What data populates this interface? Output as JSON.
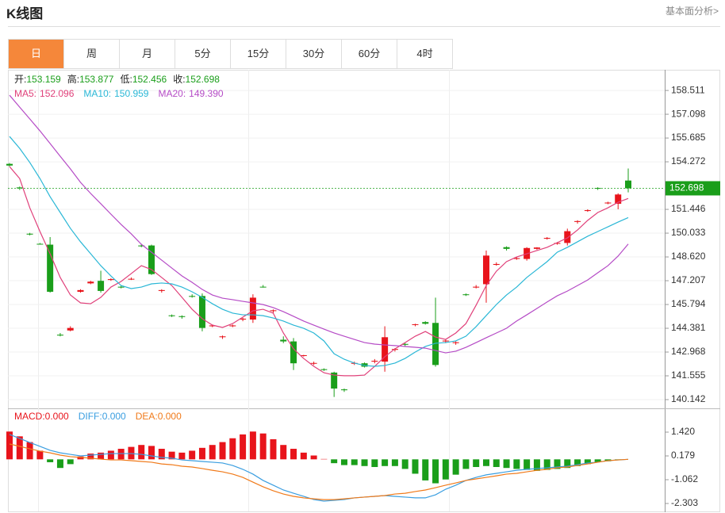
{
  "header": {
    "title": "K线图",
    "link": "基本面分析>"
  },
  "tabs": [
    "日",
    "周",
    "月",
    "5分",
    "15分",
    "30分",
    "60分",
    "4时"
  ],
  "chart_data": [
    {
      "type": "candlestick",
      "ohlc_labels": [
        "开:",
        "高:",
        "低:",
        "收:"
      ],
      "up_color": "#e8141b",
      "down_color": "#1a9e1a",
      "open": [
        154.15,
        152.75,
        150.0,
        149.4,
        149.35,
        144.0,
        144.25,
        146.55,
        147.05,
        147.2,
        147.25,
        146.85,
        147.3,
        149.3,
        149.3,
        146.6,
        145.15,
        145.1,
        146.3,
        146.3,
        144.5,
        143.85,
        144.5,
        144.9,
        144.9,
        146.85,
        145.4,
        143.7,
        143.6,
        142.75,
        142.3,
        141.95,
        141.75,
        140.75,
        142.3,
        142.3,
        142.4,
        142.4,
        143.1,
        143.45,
        144.6,
        144.75,
        144.7,
        143.6,
        143.5,
        146.4,
        146.8,
        147.0,
        148.15,
        149.2,
        148.5,
        148.5,
        149.1,
        149.7,
        149.4,
        149.45,
        150.7,
        151.35,
        152.72,
        151.8,
        151.78,
        153.159
      ],
      "high": [
        154.2,
        152.8,
        150.05,
        149.45,
        149.8,
        144.1,
        144.5,
        146.7,
        147.2,
        147.8,
        147.35,
        146.9,
        147.4,
        149.4,
        149.35,
        146.7,
        145.2,
        145.15,
        146.4,
        146.45,
        144.6,
        143.95,
        144.6,
        145.0,
        146.4,
        146.95,
        145.5,
        143.9,
        143.8,
        142.8,
        142.4,
        142.0,
        141.8,
        140.8,
        142.4,
        142.35,
        142.55,
        144.5,
        143.2,
        143.5,
        144.65,
        144.8,
        146.2,
        143.7,
        143.6,
        146.45,
        146.95,
        149.0,
        148.3,
        149.25,
        148.6,
        149.2,
        149.2,
        149.8,
        149.5,
        150.3,
        150.8,
        151.45,
        152.76,
        151.9,
        152.4,
        153.877
      ],
      "low": [
        154.0,
        152.6,
        149.9,
        149.35,
        146.5,
        143.9,
        144.2,
        146.5,
        147.0,
        146.5,
        147.2,
        146.75,
        147.25,
        149.2,
        147.55,
        146.5,
        145.05,
        144.95,
        146.2,
        144.2,
        144.45,
        143.75,
        144.45,
        144.8,
        144.7,
        146.8,
        145.3,
        143.5,
        141.9,
        142.7,
        142.2,
        141.85,
        140.3,
        140.6,
        142.2,
        142.05,
        142.3,
        141.8,
        143.0,
        143.3,
        144.5,
        144.6,
        142.1,
        143.5,
        143.4,
        146.3,
        146.75,
        145.9,
        148.1,
        149.0,
        148.45,
        148.4,
        149.05,
        149.65,
        149.35,
        149.3,
        150.6,
        151.3,
        152.6,
        151.75,
        151.45,
        152.456
      ],
      "close": [
        154.05,
        152.7,
        149.95,
        149.38,
        146.55,
        143.95,
        144.4,
        146.65,
        147.15,
        146.6,
        147.3,
        146.8,
        147.32,
        149.25,
        147.6,
        146.65,
        145.1,
        145.05,
        146.25,
        144.4,
        144.55,
        143.9,
        144.55,
        144.95,
        146.2,
        146.82,
        145.45,
        143.6,
        142.3,
        142.78,
        142.32,
        141.9,
        140.8,
        140.7,
        142.32,
        142.1,
        142.45,
        143.85,
        143.15,
        143.4,
        144.62,
        144.65,
        142.2,
        143.65,
        143.55,
        146.35,
        146.85,
        148.7,
        148.2,
        149.1,
        148.55,
        149.15,
        149.18,
        149.75,
        149.45,
        150.15,
        150.75,
        151.4,
        152.7,
        151.85,
        152.33,
        152.698
      ],
      "series": [
        {
          "name": "MA5:",
          "color": "#e0407a",
          "values": [
            153.99,
            153.28,
            151.54,
            150.13,
            148.81,
            147.4,
            146.36,
            145.89,
            145.84,
            146.22,
            146.83,
            147.16,
            147.63,
            148.1,
            147.87,
            147.4,
            146.92,
            146.22,
            145.51,
            144.95,
            144.57,
            144.43,
            144.66,
            145.04,
            145.42,
            145.51,
            145.28,
            144.1,
            143.16,
            142.59,
            142.12,
            141.74,
            141.6,
            141.56,
            141.56,
            141.6,
            142.12,
            142.69,
            143.16,
            143.53,
            143.91,
            144.19,
            143.86,
            143.72,
            144.1,
            144.66,
            145.75,
            146.92,
            147.77,
            148.34,
            148.62,
            148.81,
            149.0,
            149.19,
            149.47,
            149.75,
            150.22,
            150.79,
            151.26,
            151.54,
            151.87,
            152.096
          ],
          "value_labels": [
            null,
            null,
            null,
            null,
            null,
            null,
            null,
            null,
            null,
            null,
            null,
            null,
            null,
            null,
            null,
            null,
            null,
            null,
            null,
            null,
            null,
            null,
            null,
            null,
            null,
            null,
            null,
            null,
            null,
            null,
            null,
            null,
            null,
            null,
            null,
            null,
            null,
            null,
            null,
            null,
            null,
            null,
            null,
            null,
            null,
            null,
            null,
            null,
            null,
            null,
            null,
            null,
            null,
            null,
            null,
            null,
            null,
            null,
            null,
            null,
            null,
            "152.096"
          ]
        },
        {
          "name": "MA10:",
          "color": "#2ab7d6",
          "values": [
            155.78,
            155.07,
            154.23,
            153.28,
            152.2,
            151.26,
            150.32,
            149.52,
            148.81,
            148.1,
            147.49,
            146.92,
            146.74,
            146.83,
            147.02,
            147.07,
            147.02,
            146.83,
            146.55,
            146.22,
            145.84,
            145.51,
            145.28,
            145.18,
            145.18,
            145.13,
            144.99,
            144.81,
            144.57,
            144.38,
            144.1,
            143.63,
            142.87,
            142.54,
            142.31,
            142.17,
            142.12,
            142.17,
            142.31,
            142.59,
            142.97,
            143.3,
            143.49,
            143.53,
            143.63,
            143.91,
            144.48,
            145.14,
            145.79,
            146.36,
            146.83,
            147.4,
            147.87,
            148.34,
            148.9,
            149.19,
            149.52,
            149.85,
            150.13,
            150.41,
            150.69,
            150.959
          ],
          "value_labels": [
            null,
            null,
            null,
            null,
            null,
            null,
            null,
            null,
            null,
            null,
            null,
            null,
            null,
            null,
            null,
            null,
            null,
            null,
            null,
            null,
            null,
            null,
            null,
            null,
            null,
            null,
            null,
            null,
            null,
            null,
            null,
            null,
            null,
            null,
            null,
            null,
            null,
            null,
            null,
            null,
            null,
            null,
            null,
            null,
            null,
            null,
            null,
            null,
            null,
            null,
            null,
            null,
            null,
            null,
            null,
            null,
            null,
            null,
            null,
            null,
            null,
            "150.959"
          ]
        },
        {
          "name": "MA20:",
          "color": "#b54bc6",
          "values": [
            158.23,
            157.52,
            156.82,
            156.11,
            155.36,
            154.6,
            153.85,
            153.05,
            152.39,
            151.78,
            151.16,
            150.55,
            149.99,
            149.37,
            148.9,
            148.43,
            147.96,
            147.49,
            147.11,
            146.69,
            146.36,
            146.17,
            146.08,
            145.98,
            145.89,
            145.79,
            145.61,
            145.37,
            145.09,
            144.81,
            144.57,
            144.33,
            144.1,
            143.91,
            143.72,
            143.53,
            143.44,
            143.39,
            143.35,
            143.3,
            143.25,
            143.2,
            143.06,
            142.92,
            143.02,
            143.25,
            143.53,
            143.82,
            144.1,
            144.38,
            144.81,
            145.18,
            145.56,
            145.94,
            146.31,
            146.59,
            146.92,
            147.25,
            147.68,
            148.1,
            148.67,
            149.39
          ],
          "value_labels": [
            null,
            null,
            null,
            null,
            null,
            null,
            null,
            null,
            null,
            null,
            null,
            null,
            null,
            null,
            null,
            null,
            null,
            null,
            null,
            null,
            null,
            null,
            null,
            null,
            null,
            null,
            null,
            null,
            null,
            null,
            null,
            null,
            null,
            null,
            null,
            null,
            null,
            null,
            null,
            null,
            null,
            null,
            null,
            null,
            null,
            null,
            null,
            null,
            null,
            null,
            null,
            null,
            null,
            null,
            null,
            null,
            null,
            null,
            null,
            null,
            null,
            "149.390"
          ]
        }
      ],
      "ylim": [
        139.624,
        159.74
      ],
      "yticks": [
        158.511,
        157.098,
        155.685,
        154.272,
        151.446,
        150.033,
        {
          "value": 148.62,
          "label": "148.620"
        },
        147.207,
        145.794,
        144.381,
        142.968,
        141.555,
        140.142
      ],
      "grid": true
    },
    {
      "type": "macd",
      "series": [
        {
          "name": "MACD:",
          "kind": "bar",
          "color": "#e8141b",
          "negative_color": "#1a9e1a",
          "values": [
            1.45,
            1.2,
            0.9,
            0.45,
            -0.15,
            -0.45,
            -0.25,
            0.15,
            0.3,
            0.35,
            0.45,
            0.55,
            0.65,
            0.75,
            0.7,
            0.55,
            0.4,
            0.35,
            0.45,
            0.6,
            0.75,
            0.9,
            1.1,
            1.3,
            1.45,
            1.35,
            1.05,
            0.75,
            0.55,
            0.35,
            0.2,
            0.02,
            -0.2,
            -0.3,
            -0.3,
            -0.35,
            -0.4,
            -0.35,
            -0.35,
            -0.5,
            -0.75,
            -1.1,
            -1.25,
            -1.05,
            -0.8,
            -0.5,
            -0.4,
            -0.35,
            -0.4,
            -0.45,
            -0.5,
            -0.55,
            -0.6,
            -0.55,
            -0.5,
            -0.45,
            -0.35,
            -0.25,
            -0.15,
            -0.1,
            -0.05,
            0
          ],
          "value_labels": [
            null,
            null,
            null,
            null,
            null,
            null,
            null,
            null,
            null,
            null,
            null,
            null,
            null,
            null,
            null,
            null,
            null,
            null,
            null,
            null,
            null,
            null,
            null,
            null,
            null,
            null,
            null,
            null,
            null,
            null,
            null,
            null,
            null,
            null,
            null,
            null,
            null,
            null,
            null,
            null,
            null,
            null,
            null,
            null,
            null,
            null,
            null,
            null,
            null,
            null,
            null,
            null,
            null,
            null,
            null,
            null,
            null,
            null,
            null,
            null,
            null,
            "0.000"
          ]
        },
        {
          "name": "DIFF:",
          "kind": "line",
          "color": "#3a9ee0",
          "values": [
            1.3,
            1.09,
            0.88,
            0.68,
            0.47,
            0.34,
            0.26,
            0.18,
            0.22,
            0.26,
            0.3,
            0.3,
            0.3,
            0.26,
            0.18,
            0.1,
            0.06,
            -0.03,
            -0.07,
            -0.11,
            -0.15,
            -0.19,
            -0.32,
            -0.52,
            -0.77,
            -1.1,
            -1.35,
            -1.6,
            -1.77,
            -1.93,
            -2.1,
            -2.18,
            -2.14,
            -2.1,
            -2.01,
            -1.97,
            -1.93,
            -1.89,
            -1.93,
            -1.97,
            -2.01,
            -2.01,
            -1.85,
            -1.56,
            -1.35,
            -1.1,
            -0.94,
            -0.81,
            -0.73,
            -0.65,
            -0.57,
            -0.52,
            -0.48,
            -0.44,
            -0.4,
            -0.36,
            -0.28,
            -0.19,
            -0.15,
            -0.07,
            -0.03,
            0
          ],
          "value_labels": [
            null,
            null,
            null,
            null,
            null,
            null,
            null,
            null,
            null,
            null,
            null,
            null,
            null,
            null,
            null,
            null,
            null,
            null,
            null,
            null,
            null,
            null,
            null,
            null,
            null,
            null,
            null,
            null,
            null,
            null,
            null,
            null,
            null,
            null,
            null,
            null,
            null,
            null,
            null,
            null,
            null,
            null,
            null,
            null,
            null,
            null,
            null,
            null,
            null,
            null,
            null,
            null,
            null,
            null,
            null,
            null,
            null,
            null,
            null,
            null,
            null,
            "0.000"
          ]
        },
        {
          "name": "DEA:",
          "kind": "line",
          "color": "#f07a1a",
          "values": [
            0.8,
            0.68,
            0.55,
            0.43,
            0.34,
            0.22,
            0.14,
            0.1,
            0.06,
            0.01,
            -0.03,
            -0.03,
            -0.07,
            -0.11,
            -0.15,
            -0.24,
            -0.28,
            -0.36,
            -0.4,
            -0.48,
            -0.57,
            -0.65,
            -0.77,
            -0.94,
            -1.19,
            -1.43,
            -1.64,
            -1.81,
            -1.93,
            -2.01,
            -2.06,
            -2.1,
            -2.1,
            -2.06,
            -2.01,
            -1.97,
            -1.93,
            -1.89,
            -1.81,
            -1.77,
            -1.68,
            -1.6,
            -1.48,
            -1.35,
            -1.23,
            -1.1,
            -1.02,
            -0.94,
            -0.86,
            -0.77,
            -0.73,
            -0.65,
            -0.57,
            -0.52,
            -0.44,
            -0.4,
            -0.32,
            -0.24,
            -0.15,
            -0.07,
            -0.03,
            0
          ],
          "value_labels": [
            null,
            null,
            null,
            null,
            null,
            null,
            null,
            null,
            null,
            null,
            null,
            null,
            null,
            null,
            null,
            null,
            null,
            null,
            null,
            null,
            null,
            null,
            null,
            null,
            null,
            null,
            null,
            null,
            null,
            null,
            null,
            null,
            null,
            null,
            null,
            null,
            null,
            null,
            null,
            null,
            null,
            null,
            null,
            null,
            null,
            null,
            null,
            null,
            null,
            null,
            null,
            null,
            null,
            null,
            null,
            null,
            null,
            null,
            null,
            null,
            null,
            "0.000"
          ]
        }
      ],
      "ylim": [
        -2.717,
        2.537
      ],
      "yticks": [
        {
          "value": 1.42,
          "label": "1.420"
        },
        0.179,
        -1.062,
        -2.303
      ]
    }
  ]
}
